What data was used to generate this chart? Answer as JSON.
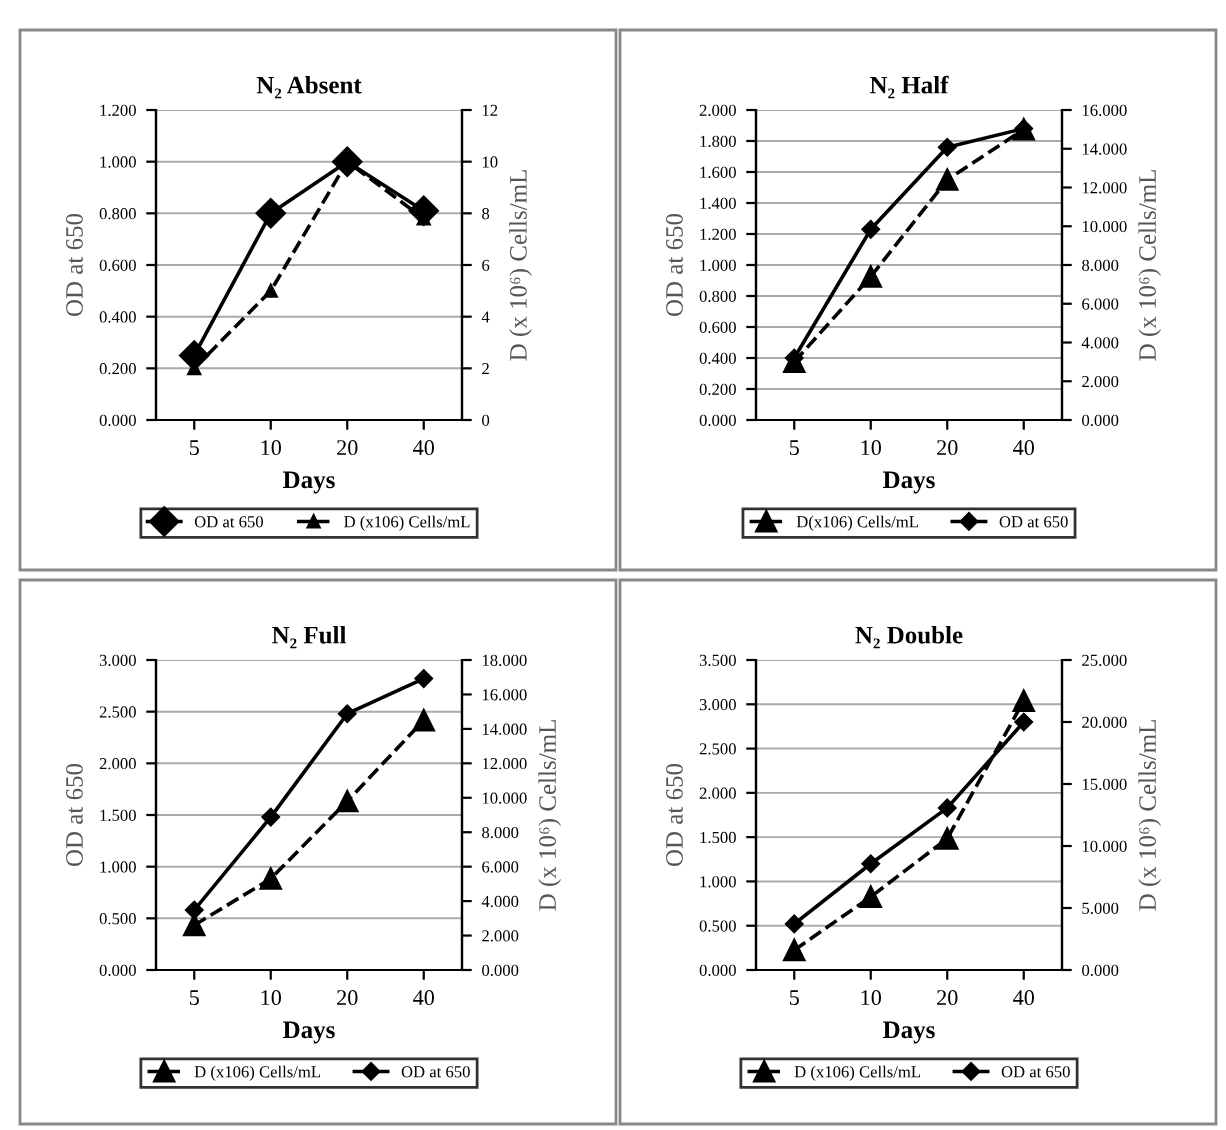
{
  "chart_data": [
    {
      "type": "line",
      "title": "N₂ Absent",
      "xlabel": "Days",
      "ylabel": "OD at 650",
      "y2label": "D (x 10⁶) Cells/mL",
      "categories": [
        "5",
        "10",
        "20",
        "40"
      ],
      "ylim": [
        0,
        1.2
      ],
      "yticks": [
        {
          "value": 0,
          "label": "0.000"
        },
        {
          "value": 0.2,
          "label": "0.200"
        },
        {
          "value": 0.4,
          "label": "0.400"
        },
        {
          "value": 0.6,
          "label": "0.600"
        },
        {
          "value": 0.8,
          "label": "0.800"
        },
        {
          "value": 1.0,
          "label": "1.000"
        },
        {
          "value": 1.2,
          "label": "1.200"
        }
      ],
      "y2lim": [
        0,
        12
      ],
      "y2ticks": [
        0,
        2,
        4,
        6,
        8,
        10,
        12
      ],
      "grid": "y",
      "legend": "bottom",
      "series": [
        {
          "name": "OD at 650",
          "color": "#000000",
          "marker": "diamond",
          "line_style": "solid",
          "values": [
            0.25,
            0.8,
            1.0,
            0.81
          ]
        },
        {
          "name": "D (x106) Cells/mL",
          "color": "#000000",
          "marker": "triangle",
          "line_style": "dashed",
          "axis": "y2",
          "values": [
            2,
            5,
            10,
            7.8
          ]
        }
      ]
    },
    {
      "type": "line",
      "title": "N₂ Half",
      "xlabel": "Days",
      "ylabel": "OD at 650",
      "y2label": "D (x 10⁶) Cells/mL",
      "categories": [
        "5",
        "10",
        "20",
        "40"
      ],
      "ylim": [
        0,
        2.0
      ],
      "yticks": [
        {
          "value": 0,
          "label": "0.000"
        },
        {
          "value": 0.2,
          "label": "0.200"
        },
        {
          "value": 0.4,
          "label": "0.400"
        },
        {
          "value": 0.6,
          "label": "0.600"
        },
        {
          "value": 0.8,
          "label": "0.800"
        },
        {
          "value": 1.0,
          "label": "1.000"
        },
        {
          "value": 1.2,
          "label": "1.200"
        },
        {
          "value": 1.4,
          "label": "1.400"
        },
        {
          "value": 1.6,
          "label": "1.600"
        },
        {
          "value": 1.8,
          "label": "1.800"
        },
        {
          "value": 2.0,
          "label": "2.000"
        }
      ],
      "y2lim": [
        0,
        16
      ],
      "y2ticks": [
        {
          "value": 0,
          "label": "0.000"
        },
        {
          "value": 2,
          "label": "2.000"
        },
        {
          "value": 4,
          "label": "4.000"
        },
        {
          "value": 6,
          "label": "6.000"
        },
        {
          "value": 8,
          "label": "8.000"
        },
        {
          "value": 10,
          "label": "10.000"
        },
        {
          "value": 12,
          "label": "12.000"
        },
        {
          "value": 14,
          "label": "14.000"
        },
        {
          "value": 16,
          "label": "16.000"
        }
      ],
      "grid": "y",
      "legend": "bottom",
      "series": [
        {
          "name": "D(x106) Cells/mL",
          "color": "#000000",
          "marker": "triangle",
          "line_style": "dashed",
          "axis": "y2",
          "values": [
            3.0,
            7.4,
            12.4,
            15.0
          ]
        },
        {
          "name": "OD at 650",
          "color": "#000000",
          "marker": "diamond",
          "line_style": "solid",
          "values": [
            0.4,
            1.23,
            1.76,
            1.88
          ]
        }
      ]
    },
    {
      "type": "line",
      "title": "N₂ Full",
      "xlabel": "Days",
      "ylabel": "OD at 650",
      "y2label": "D (x 10⁶) Cells/mL",
      "categories": [
        "5",
        "10",
        "20",
        "40"
      ],
      "ylim": [
        0,
        3.0
      ],
      "yticks": [
        {
          "value": 0,
          "label": "0.000"
        },
        {
          "value": 0.5,
          "label": "0.500"
        },
        {
          "value": 1.0,
          "label": "1.000"
        },
        {
          "value": 1.5,
          "label": "1.500"
        },
        {
          "value": 2.0,
          "label": "2.000"
        },
        {
          "value": 2.5,
          "label": "2.500"
        },
        {
          "value": 3.0,
          "label": "3.000"
        }
      ],
      "y2lim": [
        0,
        18
      ],
      "y2ticks": [
        {
          "value": 0,
          "label": "0.000"
        },
        {
          "value": 2,
          "label": "2.000"
        },
        {
          "value": 4,
          "label": "4.000"
        },
        {
          "value": 6,
          "label": "6.000"
        },
        {
          "value": 8,
          "label": "8.000"
        },
        {
          "value": 10,
          "label": "10.000"
        },
        {
          "value": 12,
          "label": "12.000"
        },
        {
          "value": 14,
          "label": "14.000"
        },
        {
          "value": 16,
          "label": "16.000"
        },
        {
          "value": 18,
          "label": "18.000"
        }
      ],
      "grid": "y",
      "legend": "bottom",
      "series": [
        {
          "name": "D (x106) Cells/mL",
          "color": "#000000",
          "marker": "triangle",
          "line_style": "dashed",
          "axis": "y2",
          "values": [
            2.6,
            5.3,
            9.8,
            14.5
          ]
        },
        {
          "name": "OD at 650",
          "color": "#000000",
          "marker": "diamond",
          "line_style": "solid",
          "values": [
            0.58,
            1.48,
            2.48,
            2.82
          ]
        }
      ]
    },
    {
      "type": "line",
      "title": "N₂ Double",
      "xlabel": "Days",
      "ylabel": "OD at 650",
      "y2label": "D (x 10⁶) Cells/mL",
      "categories": [
        "5",
        "10",
        "20",
        "40"
      ],
      "ylim": [
        0,
        3.5
      ],
      "yticks": [
        {
          "value": 0,
          "label": "0.000"
        },
        {
          "value": 0.5,
          "label": "0.500"
        },
        {
          "value": 1.0,
          "label": "1.000"
        },
        {
          "value": 1.5,
          "label": "1.500"
        },
        {
          "value": 2.0,
          "label": "2.000"
        },
        {
          "value": 2.5,
          "label": "2.500"
        },
        {
          "value": 3.0,
          "label": "3.000"
        },
        {
          "value": 3.5,
          "label": "3.500"
        }
      ],
      "y2lim": [
        0,
        25
      ],
      "y2ticks": [
        {
          "value": 0,
          "label": "0.000"
        },
        {
          "value": 5,
          "label": "5.000"
        },
        {
          "value": 10,
          "label": "10.000"
        },
        {
          "value": 15,
          "label": "15.000"
        },
        {
          "value": 20,
          "label": "20.000"
        },
        {
          "value": 25,
          "label": "25.000"
        }
      ],
      "grid": "y",
      "legend": "bottom",
      "series": [
        {
          "name": "D (x106) Cells/mL",
          "color": "#000000",
          "marker": "triangle",
          "line_style": "dashed",
          "axis": "y2",
          "values": [
            1.6,
            5.9,
            10.6,
            21.7
          ]
        },
        {
          "name": "OD at 650",
          "color": "#000000",
          "marker": "diamond",
          "line_style": "solid",
          "values": [
            0.52,
            1.2,
            1.83,
            2.8
          ]
        }
      ]
    }
  ]
}
